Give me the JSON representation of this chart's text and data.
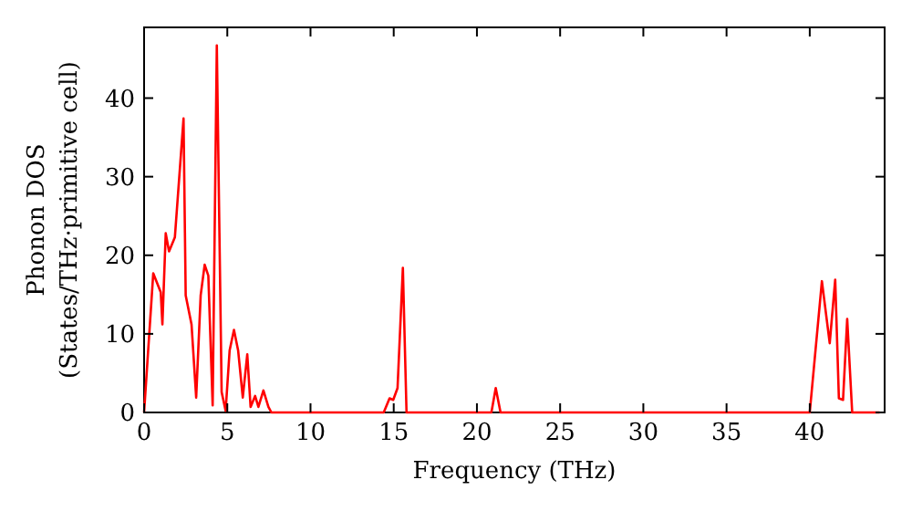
{
  "chart_data": {
    "type": "line",
    "xlabel": "Frequency (THz)",
    "ylabel": "Phonon DOS\n(States/THz·primitive cell)",
    "x": [
      0,
      0.55,
      1.0,
      1.1,
      1.3,
      1.5,
      1.85,
      2.37,
      2.5,
      2.85,
      3.13,
      3.4,
      3.64,
      3.86,
      4.12,
      4.37,
      4.66,
      4.9,
      5.14,
      5.4,
      5.65,
      5.93,
      6.2,
      6.4,
      6.67,
      6.87,
      7.17,
      7.47,
      7.65,
      14.4,
      14.75,
      14.97,
      15.23,
      15.55,
      15.77,
      20.87,
      21.13,
      21.42,
      40.0,
      40.73,
      41.2,
      41.53,
      41.75,
      42.0,
      42.25,
      42.55,
      44.2
    ],
    "series": [
      {
        "color": "#ff0000",
        "values": [
          0,
          17.7,
          15.3,
          11.2,
          22.8,
          20.5,
          22.3,
          37.4,
          14.9,
          11.2,
          1.9,
          14.9,
          18.8,
          17.4,
          0.9,
          46.7,
          2.6,
          0.2,
          7.9,
          10.5,
          7.9,
          1.9,
          7.4,
          0.7,
          2.1,
          0.7,
          2.8,
          0.7,
          0,
          0,
          1.8,
          1.6,
          3.1,
          18.4,
          0,
          0,
          3.1,
          0,
          0,
          16.7,
          8.8,
          16.9,
          1.8,
          1.6,
          11.9,
          0,
          0
        ]
      }
    ],
    "xlim": [
      0,
      44.5
    ],
    "ylim": [
      0,
      49
    ],
    "xticks": [
      0,
      5,
      10,
      15,
      20,
      25,
      30,
      35,
      40
    ],
    "yticks": [
      0,
      10,
      20,
      30,
      40
    ],
    "grid": false,
    "marker": "none",
    "line_style": "solid"
  }
}
